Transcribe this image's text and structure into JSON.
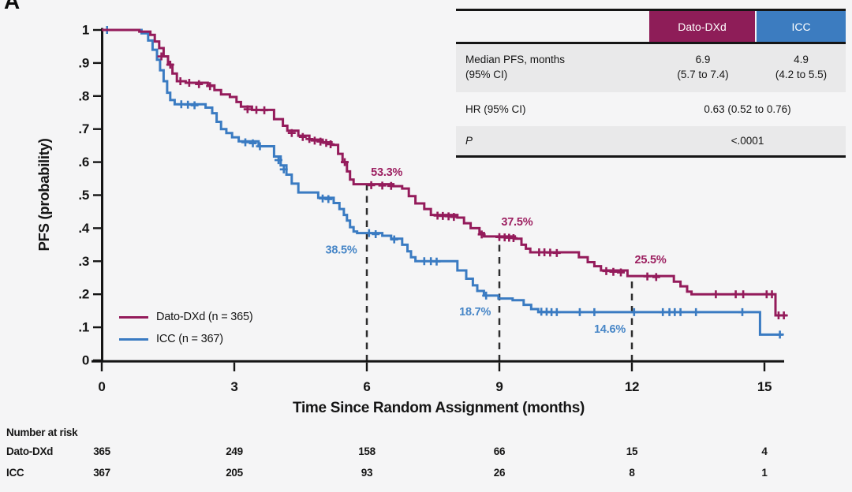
{
  "page": {
    "panel_label": "A",
    "background": "#f5f5f6"
  },
  "colors": {
    "dato": "#941B5B",
    "icc": "#3A7BC2",
    "dato_header_bg": "#8E1D58",
    "icc_header_bg": "#3C7CC0",
    "axis": "#151515",
    "reference_line": "#2d2d2d",
    "table_row_gray": "#e9e9ea"
  },
  "stats_table": {
    "col_dato": "Dato-DXd",
    "col_icc": "ICC",
    "median_label_line1": "Median PFS, months",
    "median_label_line2": "(95% CI)",
    "median_dato": "6.9",
    "median_dato_ci": "(5.7 to 7.4)",
    "median_icc": "4.9",
    "median_icc_ci": "(4.2 to 5.5)",
    "hr_label": "HR (95% CI)",
    "hr_value": "0.63 (0.52 to 0.76)",
    "p_label": "P",
    "p_value": "<.0001"
  },
  "chart_data": {
    "type": "line",
    "subtype": "kaplan-meier-step",
    "xlabel": "Time Since Random Assignment (months)",
    "ylabel": "PFS (probability)",
    "xlim": [
      0,
      15.6
    ],
    "ylim": [
      0,
      1
    ],
    "grid": false,
    "x_ticks": [
      0,
      3,
      6,
      9,
      12,
      15
    ],
    "y_ticks": [
      {
        "label": "1",
        "v": 1.0
      },
      {
        "label": ".9",
        "v": 0.9
      },
      {
        "label": ".8",
        "v": 0.8
      },
      {
        "label": ".7",
        "v": 0.7
      },
      {
        "label": ".6",
        "v": 0.6
      },
      {
        "label": ".5",
        "v": 0.5
      },
      {
        "label": ".4",
        "v": 0.4
      },
      {
        "label": ".3",
        "v": 0.3
      },
      {
        "label": ".2",
        "v": 0.2
      },
      {
        "label": ".1",
        "v": 0.1
      },
      {
        "label": "0",
        "v": 0.0
      }
    ],
    "series": [
      {
        "key": "dato-dxd",
        "name": "Dato-DXd (n = 365)",
        "color": "#941B5B",
        "milestones": {
          "6mo": 0.533,
          "9mo": 0.375,
          "12mo": 0.255,
          "median": 6.9
        },
        "end_t": 15.5,
        "steps": [
          [
            0,
            1.0
          ],
          [
            0.85,
            0.995
          ],
          [
            1.1,
            0.985
          ],
          [
            1.2,
            0.965
          ],
          [
            1.3,
            0.945
          ],
          [
            1.4,
            0.92
          ],
          [
            1.5,
            0.895
          ],
          [
            1.6,
            0.868
          ],
          [
            1.7,
            0.845
          ],
          [
            1.9,
            0.84
          ],
          [
            2.4,
            0.832
          ],
          [
            2.55,
            0.818
          ],
          [
            2.7,
            0.805
          ],
          [
            2.9,
            0.797
          ],
          [
            3.05,
            0.782
          ],
          [
            3.15,
            0.768
          ],
          [
            3.4,
            0.758
          ],
          [
            3.9,
            0.73
          ],
          [
            4.1,
            0.71
          ],
          [
            4.2,
            0.695
          ],
          [
            4.45,
            0.68
          ],
          [
            4.7,
            0.668
          ],
          [
            5.0,
            0.66
          ],
          [
            5.2,
            0.652
          ],
          [
            5.35,
            0.625
          ],
          [
            5.45,
            0.6
          ],
          [
            5.55,
            0.572
          ],
          [
            5.62,
            0.547
          ],
          [
            5.7,
            0.533
          ],
          [
            6.6,
            0.527
          ],
          [
            6.8,
            0.52
          ],
          [
            6.95,
            0.497
          ],
          [
            7.1,
            0.475
          ],
          [
            7.3,
            0.458
          ],
          [
            7.45,
            0.44
          ],
          [
            8.05,
            0.432
          ],
          [
            8.2,
            0.415
          ],
          [
            8.35,
            0.4
          ],
          [
            8.55,
            0.385
          ],
          [
            8.65,
            0.375
          ],
          [
            9.35,
            0.368
          ],
          [
            9.5,
            0.35
          ],
          [
            9.6,
            0.338
          ],
          [
            9.7,
            0.327
          ],
          [
            10.8,
            0.312
          ],
          [
            11.0,
            0.297
          ],
          [
            11.15,
            0.285
          ],
          [
            11.3,
            0.272
          ],
          [
            11.9,
            0.255
          ],
          [
            12.95,
            0.238
          ],
          [
            13.1,
            0.224
          ],
          [
            13.25,
            0.208
          ],
          [
            13.35,
            0.2
          ],
          [
            15.25,
            0.136
          ]
        ],
        "censors": [
          [
            1.35,
            0.92
          ],
          [
            1.55,
            0.895
          ],
          [
            1.78,
            0.845
          ],
          [
            1.98,
            0.84
          ],
          [
            2.2,
            0.836
          ],
          [
            2.45,
            0.83
          ],
          [
            3.3,
            0.76
          ],
          [
            3.5,
            0.758
          ],
          [
            3.68,
            0.757
          ],
          [
            4.3,
            0.688
          ],
          [
            4.55,
            0.676
          ],
          [
            4.7,
            0.67
          ],
          [
            4.82,
            0.665
          ],
          [
            4.95,
            0.662
          ],
          [
            5.08,
            0.658
          ],
          [
            5.18,
            0.654
          ],
          [
            5.5,
            0.6
          ],
          [
            6.1,
            0.53
          ],
          [
            6.35,
            0.529
          ],
          [
            6.55,
            0.528
          ],
          [
            7.6,
            0.438
          ],
          [
            7.72,
            0.437
          ],
          [
            7.85,
            0.436
          ],
          [
            7.97,
            0.434
          ],
          [
            8.6,
            0.381
          ],
          [
            9.0,
            0.373
          ],
          [
            9.12,
            0.372
          ],
          [
            9.22,
            0.371
          ],
          [
            9.32,
            0.37
          ],
          [
            9.9,
            0.327
          ],
          [
            10.02,
            0.327
          ],
          [
            10.15,
            0.326
          ],
          [
            10.3,
            0.325
          ],
          [
            11.42,
            0.27
          ],
          [
            11.58,
            0.268
          ],
          [
            11.75,
            0.266
          ],
          [
            12.35,
            0.254
          ],
          [
            12.55,
            0.252
          ],
          [
            13.9,
            0.2
          ],
          [
            14.35,
            0.2
          ],
          [
            14.52,
            0.2
          ],
          [
            15.05,
            0.2
          ],
          [
            15.17,
            0.2
          ],
          [
            15.32,
            0.136
          ],
          [
            15.44,
            0.136
          ]
        ]
      },
      {
        "key": "icc",
        "name": "ICC (n = 367)",
        "color": "#3A7BC2",
        "milestones": {
          "6mo": 0.385,
          "9mo": 0.187,
          "12mo": 0.146,
          "median": 4.9
        },
        "end_t": 15.42,
        "steps": [
          [
            0,
            1.0
          ],
          [
            0.9,
            0.99
          ],
          [
            1.05,
            0.968
          ],
          [
            1.15,
            0.94
          ],
          [
            1.25,
            0.91
          ],
          [
            1.32,
            0.878
          ],
          [
            1.4,
            0.845
          ],
          [
            1.48,
            0.81
          ],
          [
            1.55,
            0.788
          ],
          [
            1.65,
            0.775
          ],
          [
            2.35,
            0.765
          ],
          [
            2.5,
            0.748
          ],
          [
            2.6,
            0.722
          ],
          [
            2.7,
            0.7
          ],
          [
            2.82,
            0.688
          ],
          [
            2.95,
            0.675
          ],
          [
            3.1,
            0.663
          ],
          [
            3.55,
            0.648
          ],
          [
            3.9,
            0.617
          ],
          [
            4.05,
            0.59
          ],
          [
            4.18,
            0.562
          ],
          [
            4.3,
            0.535
          ],
          [
            4.45,
            0.508
          ],
          [
            4.9,
            0.492
          ],
          [
            5.25,
            0.476
          ],
          [
            5.38,
            0.458
          ],
          [
            5.48,
            0.44
          ],
          [
            5.55,
            0.423
          ],
          [
            5.62,
            0.403
          ],
          [
            5.7,
            0.39
          ],
          [
            5.78,
            0.385
          ],
          [
            6.35,
            0.377
          ],
          [
            6.55,
            0.368
          ],
          [
            6.8,
            0.35
          ],
          [
            6.92,
            0.33
          ],
          [
            7.0,
            0.312
          ],
          [
            7.1,
            0.3
          ],
          [
            8.05,
            0.272
          ],
          [
            8.25,
            0.247
          ],
          [
            8.4,
            0.227
          ],
          [
            8.5,
            0.21
          ],
          [
            8.65,
            0.196
          ],
          [
            8.98,
            0.187
          ],
          [
            9.3,
            0.182
          ],
          [
            9.55,
            0.168
          ],
          [
            9.72,
            0.155
          ],
          [
            9.88,
            0.146
          ],
          [
            14.9,
            0.078
          ]
        ],
        "censors": [
          [
            0.12,
            1.0
          ],
          [
            1.8,
            0.775
          ],
          [
            1.95,
            0.774
          ],
          [
            2.1,
            0.772
          ],
          [
            3.25,
            0.66
          ],
          [
            3.42,
            0.657
          ],
          [
            3.58,
            0.648
          ],
          [
            4.0,
            0.606
          ],
          [
            4.12,
            0.578
          ],
          [
            5.0,
            0.49
          ],
          [
            5.13,
            0.488
          ],
          [
            6.05,
            0.385
          ],
          [
            6.2,
            0.382
          ],
          [
            6.62,
            0.366
          ],
          [
            7.3,
            0.3
          ],
          [
            7.45,
            0.3
          ],
          [
            7.58,
            0.299
          ],
          [
            8.7,
            0.196
          ],
          [
            9.95,
            0.147
          ],
          [
            10.07,
            0.147
          ],
          [
            10.18,
            0.146
          ],
          [
            10.3,
            0.146
          ],
          [
            10.82,
            0.146
          ],
          [
            11.15,
            0.146
          ],
          [
            12.05,
            0.146
          ],
          [
            12.7,
            0.146
          ],
          [
            12.85,
            0.146
          ],
          [
            12.97,
            0.146
          ],
          [
            13.1,
            0.146
          ],
          [
            13.45,
            0.146
          ],
          [
            14.5,
            0.146
          ],
          [
            15.35,
            0.078
          ]
        ]
      }
    ],
    "reference_lines": [
      {
        "x": 6,
        "y_top": 0.533
      },
      {
        "x": 9,
        "y_top": 0.375
      },
      {
        "x": 12,
        "y_top": 0.255
      }
    ],
    "annotations": [
      {
        "text": "53.3%",
        "t": 6.45,
        "v": 0.57,
        "color": "#9C1F60"
      },
      {
        "text": "38.5%",
        "t": 5.42,
        "v": 0.335,
        "color": "#4786C7"
      },
      {
        "text": "37.5%",
        "t": 9.4,
        "v": 0.42,
        "color": "#9C1F60"
      },
      {
        "text": "18.7%",
        "t": 8.45,
        "v": 0.148,
        "color": "#4786C7"
      },
      {
        "text": "25.5%",
        "t": 12.42,
        "v": 0.305,
        "color": "#9C1F60"
      },
      {
        "text": "14.6%",
        "t": 11.5,
        "v": 0.095,
        "color": "#4786C7"
      }
    ],
    "risk_table": {
      "title": "Number at risk",
      "times": [
        0,
        3,
        6,
        9,
        12,
        15
      ],
      "rows": [
        {
          "label": "Dato-DXd",
          "values": [
            "365",
            "249",
            "158",
            "66",
            "15",
            "4"
          ]
        },
        {
          "label": "ICC",
          "values": [
            "367",
            "205",
            "93",
            "26",
            "8",
            "1"
          ]
        }
      ]
    }
  }
}
